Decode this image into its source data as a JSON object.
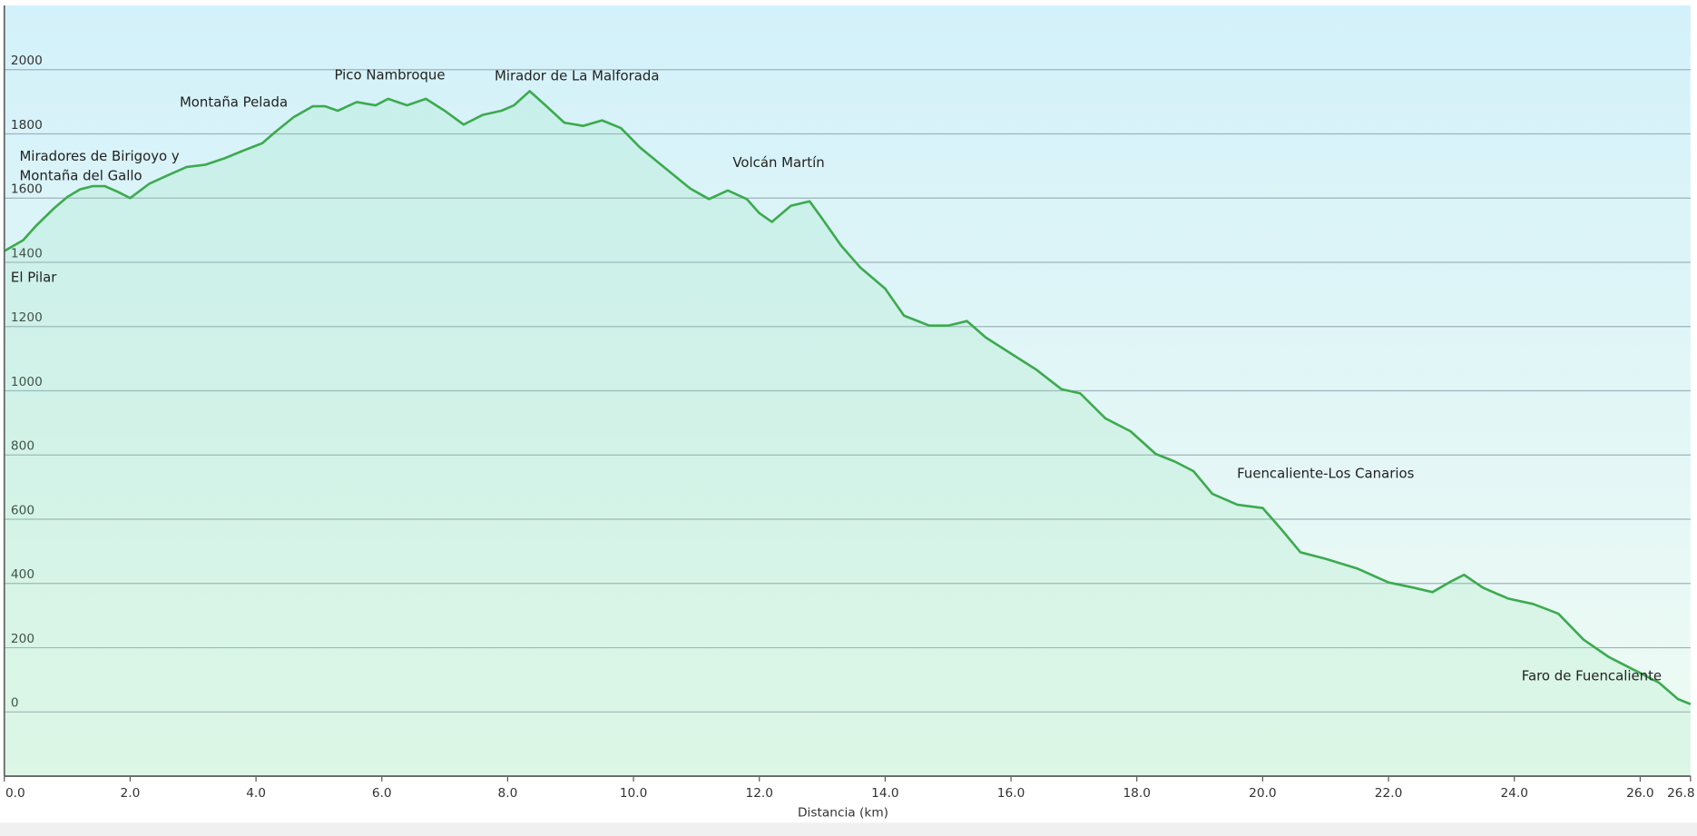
{
  "chart_data": {
    "type": "line",
    "x_label": "Distancia  (km)",
    "xlim": [
      0,
      26.8
    ],
    "ylim": [
      -200,
      2200
    ],
    "xticks": [
      {
        "value": 0,
        "label": "0.0"
      },
      {
        "value": 2,
        "label": "2.0"
      },
      {
        "value": 4,
        "label": "4.0"
      },
      {
        "value": 6,
        "label": "6.0"
      },
      {
        "value": 8,
        "label": "8.0"
      },
      {
        "value": 10,
        "label": "10.0"
      },
      {
        "value": 12,
        "label": "12.0"
      },
      {
        "value": 14,
        "label": "14.0"
      },
      {
        "value": 16,
        "label": "16.0"
      },
      {
        "value": 18,
        "label": "18.0"
      },
      {
        "value": 20,
        "label": "20.0"
      },
      {
        "value": 22,
        "label": "22.0"
      },
      {
        "value": 24,
        "label": "24.0"
      },
      {
        "value": 26,
        "label": "26.0"
      },
      {
        "value": 26.8,
        "label": "26.8"
      }
    ],
    "yticks": [
      0,
      200,
      400,
      600,
      800,
      1000,
      1200,
      1400,
      1600,
      1800,
      2000
    ],
    "grid": true,
    "color": "#3daa4f",
    "annotations": [
      "Miradores de Birigoyo y",
      "Montaña del Gallo",
      "El Pilar",
      "Montaña Pelada",
      "Pico Nambroque",
      "Mirador de La Malforada",
      "Volcán Martín",
      "Fuencaliente-Los Canarios",
      "Faro de Fuencaliente"
    ],
    "x": [
      0,
      0.3,
      0.5,
      0.8,
      1.0,
      1.2,
      1.4,
      1.6,
      1.8,
      2.0,
      2.3,
      2.6,
      2.9,
      3.2,
      3.5,
      3.8,
      4.1,
      4.3,
      4.6,
      4.9,
      5.1,
      5.3,
      5.6,
      5.9,
      6.1,
      6.4,
      6.7,
      7.0,
      7.3,
      7.6,
      7.9,
      8.1,
      8.35,
      8.6,
      8.9,
      9.2,
      9.5,
      9.8,
      10.1,
      10.5,
      10.9,
      11.2,
      11.5,
      11.8,
      12.0,
      12.2,
      12.5,
      12.8,
      13.0,
      13.3,
      13.6,
      14.0,
      14.3,
      14.7,
      15.0,
      15.3,
      15.6,
      16.0,
      16.4,
      16.8,
      17.1,
      17.5,
      17.9,
      18.3,
      18.6,
      18.9,
      19.2,
      19.6,
      20.0,
      20.3,
      20.6,
      21.0,
      21.5,
      22.0,
      22.4,
      22.7,
      23.0,
      23.2,
      23.5,
      23.9,
      24.3,
      24.7,
      25.1,
      25.5,
      25.9,
      26.3,
      26.6,
      26.8
    ],
    "values": [
      1435,
      1469,
      1513,
      1570,
      1603,
      1627,
      1637,
      1637,
      1620,
      1600,
      1644,
      1671,
      1697,
      1704,
      1724,
      1748,
      1771,
      1805,
      1852,
      1886,
      1886,
      1872,
      1899,
      1889,
      1909,
      1889,
      1909,
      1872,
      1829,
      1859,
      1872,
      1889,
      1933,
      1889,
      1835,
      1825,
      1842,
      1818,
      1758,
      1694,
      1630,
      1597,
      1624,
      1597,
      1553,
      1526,
      1576,
      1590,
      1536,
      1452,
      1385,
      1318,
      1234,
      1203,
      1203,
      1217,
      1166,
      1116,
      1066,
      1005,
      992,
      914,
      874,
      803,
      780,
      750,
      679,
      645,
      635,
      568,
      497,
      477,
      447,
      403,
      387,
      373,
      407,
      427,
      387,
      353,
      336,
      306,
      225,
      171,
      131,
      91,
      40,
      24
    ]
  }
}
